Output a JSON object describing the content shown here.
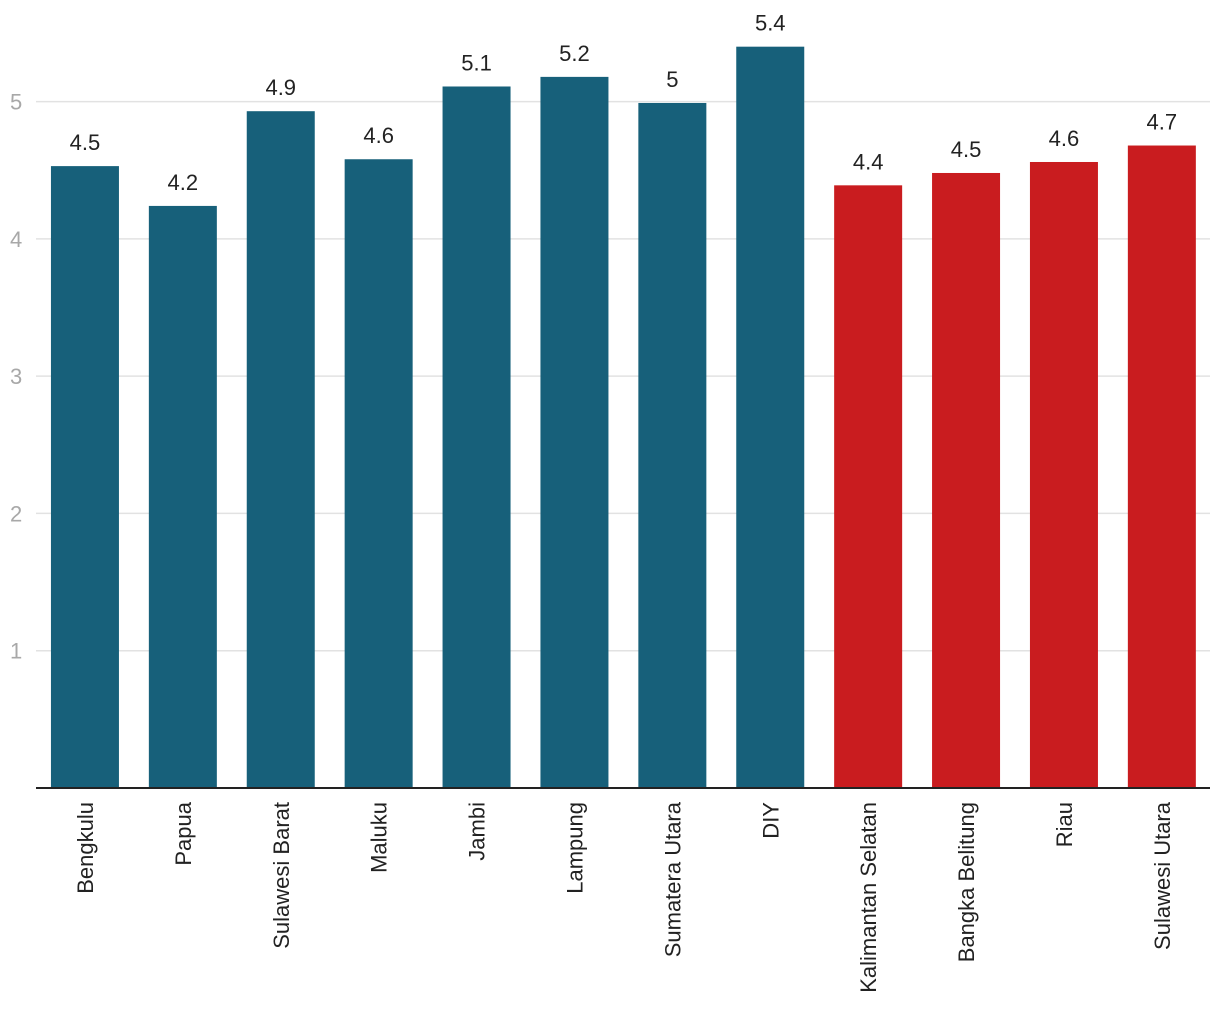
{
  "chart_data": {
    "type": "bar",
    "categories": [
      "Bengkulu",
      "Papua",
      "Sulawesi Barat",
      "Maluku",
      "Jambi",
      "Lampung",
      "Sumatera Utara",
      "DIY",
      "Kalimantan Selatan",
      "Bangka Belitung",
      "Riau",
      "Sulawesi Utara"
    ],
    "values": [
      4.53,
      4.24,
      4.93,
      4.58,
      5.11,
      5.18,
      4.99,
      5.4,
      4.39,
      4.48,
      4.56,
      4.68
    ],
    "data_labels": [
      "4.5",
      "4.2",
      "4.9",
      "4.6",
      "5.1",
      "5.2",
      "5",
      "5.4",
      "4.4",
      "4.5",
      "4.6",
      "4.7"
    ],
    "bar_colors": [
      "#17607a",
      "#17607a",
      "#17607a",
      "#17607a",
      "#17607a",
      "#17607a",
      "#17607a",
      "#17607a",
      "#c91c1f",
      "#c91c1f",
      "#c91c1f",
      "#c91c1f"
    ],
    "y_ticks": [
      1,
      2,
      3,
      4,
      5
    ],
    "y_tick_labels": [
      "1",
      "2",
      "3",
      "4",
      "5"
    ],
    "ylim": [
      0,
      5.74
    ],
    "grid": true,
    "title": "",
    "xlabel": "",
    "ylabel": ""
  }
}
